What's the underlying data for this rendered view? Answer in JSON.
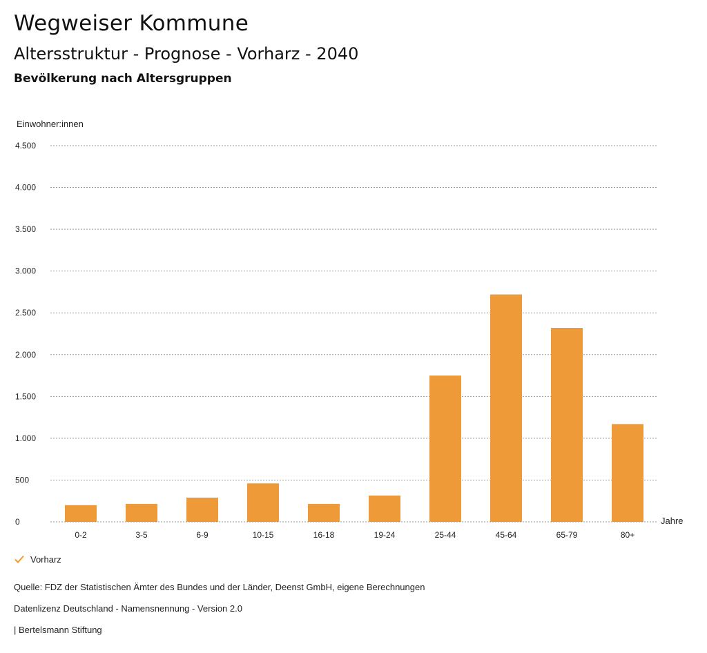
{
  "header": {
    "title": "Wegweiser Kommune",
    "subtitle": "Altersstruktur - Prognose - Vorharz - 2040",
    "chart_title": "Bevölkerung nach Altersgruppen"
  },
  "legend": {
    "label": "Vorharz",
    "icon": "check-icon"
  },
  "footer": {
    "source": "Quelle: FDZ der Statistischen Ämter des Bundes und der Länder, Deenst GmbH, eigene Berechnungen",
    "license": "Datenlizenz Deutschland - Namensnennung - Version 2.0",
    "publisher": "| Bertelsmann Stiftung"
  },
  "colors": {
    "bar": "#EE9A38",
    "grid": "#9a9a9a",
    "text": "#222222"
  },
  "chart_data": {
    "type": "bar",
    "title": "Bevölkerung nach Altersgruppen",
    "ylabel": "Einwohner:innen",
    "xlabel": "Jahre",
    "categories": [
      "0-2",
      "3-5",
      "6-9",
      "10-15",
      "16-18",
      "19-24",
      "25-44",
      "45-64",
      "65-79",
      "80+"
    ],
    "series": [
      {
        "name": "Vorharz",
        "values": [
          200,
          215,
          290,
          460,
          215,
          315,
          1750,
          2720,
          2320,
          1170
        ]
      }
    ],
    "ylim": [
      0,
      4500
    ],
    "yticks": [
      0,
      500,
      1000,
      1500,
      2000,
      2500,
      3000,
      3500,
      4000,
      4500
    ],
    "ytick_labels": [
      "0",
      "500",
      "1.000",
      "1.500",
      "2.000",
      "2.500",
      "3.000",
      "3.500",
      "4.000",
      "4.500"
    ],
    "grid": true,
    "legend_position": "bottom-left"
  }
}
